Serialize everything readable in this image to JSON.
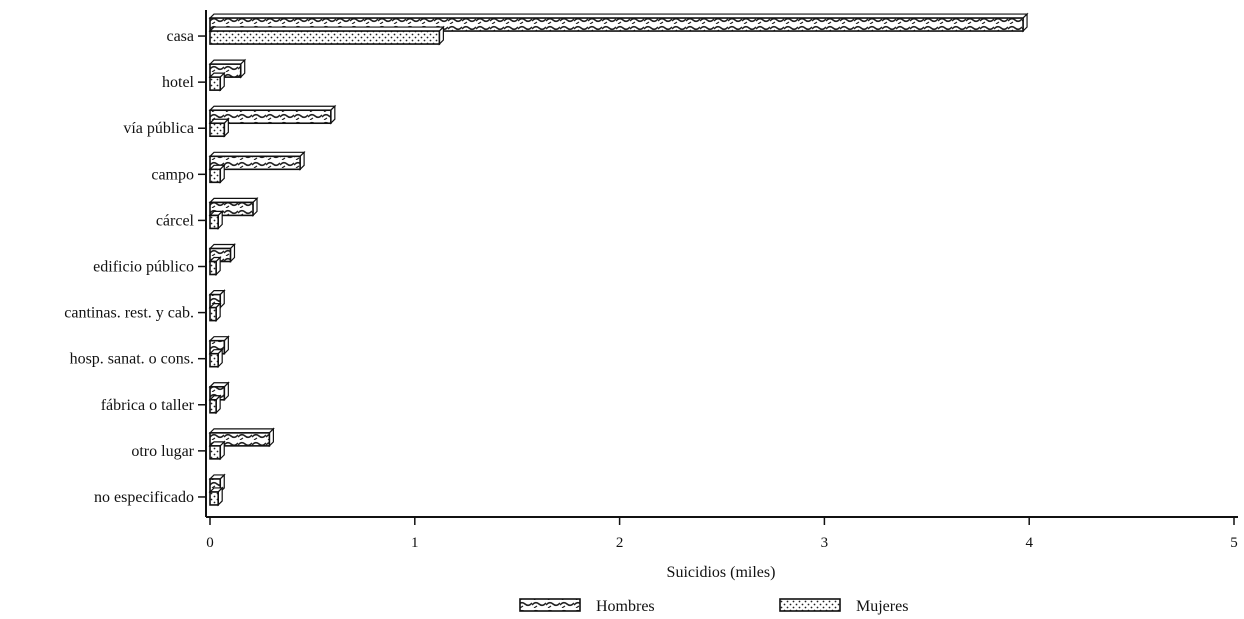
{
  "chart_data": {
    "type": "bar",
    "orientation": "horizontal",
    "categories": [
      "casa",
      "hotel",
      "vía pública",
      "campo",
      "cárcel",
      "edificio público",
      "cantinas. rest. y cab.",
      "hosp. sanat. o cons.",
      "fábrica o taller",
      "otro lugar",
      "no especificado"
    ],
    "series": [
      {
        "name": "Hombres",
        "values": [
          3.97,
          0.15,
          0.59,
          0.44,
          0.21,
          0.1,
          0.05,
          0.07,
          0.07,
          0.29,
          0.05
        ],
        "pattern": "wavy"
      },
      {
        "name": "Mujeres",
        "values": [
          1.12,
          0.05,
          0.07,
          0.05,
          0.04,
          0.03,
          0.03,
          0.04,
          0.03,
          0.05,
          0.04
        ],
        "pattern": "dots"
      }
    ],
    "xticks": [
      "0",
      "1",
      "2",
      "3",
      "4",
      "5"
    ],
    "xlim": [
      0,
      5
    ],
    "xlabel": "Suicidios (miles)",
    "ylabel": "",
    "title": "",
    "grid": false,
    "legend_position": "bottom-center"
  }
}
